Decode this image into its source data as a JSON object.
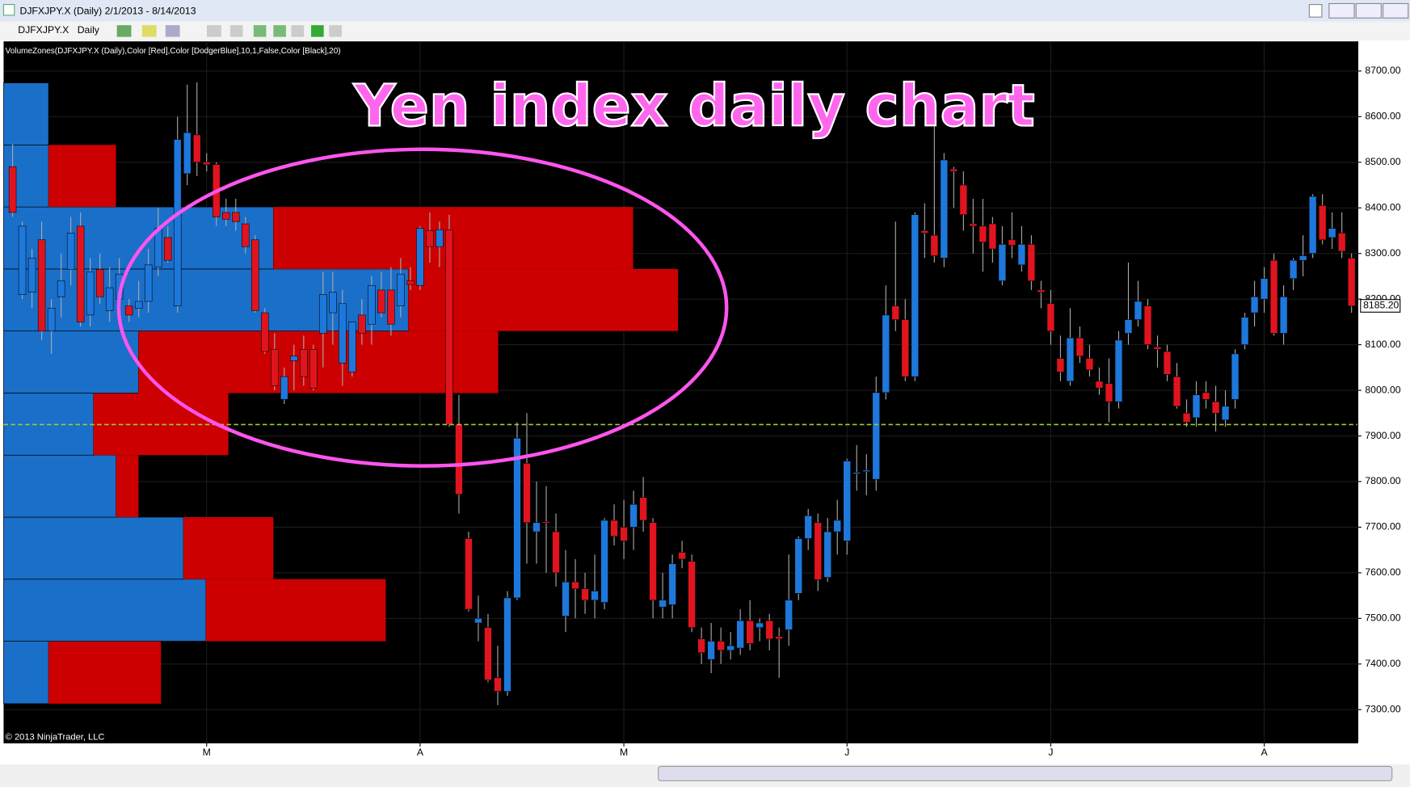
{
  "window": {
    "title": "DJFXJPY.X (Daily)  2/1/2013 - 8/14/2013",
    "instrument": "DJFXJPY.X",
    "interval": "Daily"
  },
  "chart_data": {
    "type": "candlestick",
    "title": "Yen index daily chart",
    "indicator_label": "VolumeZones(DJFXJPY.X (Daily),Color [Red],Color [DodgerBlue],10,1,False,Color [Black],20)",
    "copyright": "© 2013 NinjaTrader, LLC",
    "categories": [
      null,
      null,
      null,
      null,
      null,
      null,
      null,
      null,
      null,
      null,
      null,
      null,
      null,
      null,
      null,
      null,
      null,
      null,
      null,
      null,
      "M",
      null,
      null,
      null,
      null,
      null,
      null,
      null,
      null,
      null,
      null,
      null,
      null,
      null,
      null,
      null,
      null,
      null,
      null,
      null,
      null,
      null,
      "A",
      null,
      null,
      null,
      null,
      null,
      null,
      null,
      null,
      null,
      null,
      null,
      null,
      null,
      null,
      null,
      null,
      null,
      null,
      null,
      null,
      "M",
      null,
      null,
      null,
      null,
      null,
      null,
      null,
      null,
      null,
      null,
      null,
      null,
      null,
      null,
      null,
      null,
      null,
      null,
      null,
      null,
      null,
      null,
      "J",
      null,
      null,
      null,
      null,
      null,
      null,
      null,
      null,
      null,
      null,
      null,
      null,
      null,
      null,
      null,
      null,
      null,
      null,
      null,
      null,
      "J",
      null,
      null,
      null,
      null,
      null,
      null,
      null,
      null,
      null,
      null,
      null,
      null,
      null,
      null,
      null,
      null,
      null,
      null,
      null,
      null,
      null,
      "A",
      null,
      null,
      null,
      null,
      null,
      null,
      null,
      null,
      null
    ],
    "ohlc": [
      [
        8490,
        8540,
        8380,
        8390
      ],
      [
        8210,
        8370,
        8200,
        8360
      ],
      [
        8215,
        8310,
        8180,
        8290
      ],
      [
        8330,
        8370,
        8110,
        8130
      ],
      [
        8130,
        8200,
        8080,
        8180
      ],
      [
        8205,
        8300,
        8160,
        8240
      ],
      [
        8265,
        8380,
        8230,
        8345
      ],
      [
        8360,
        8390,
        8140,
        8150
      ],
      [
        8165,
        8290,
        8140,
        8260
      ],
      [
        8265,
        8300,
        8190,
        8205
      ],
      [
        8175,
        8270,
        8150,
        8225
      ],
      [
        8200,
        8290,
        8170,
        8255
      ],
      [
        8185,
        8200,
        8150,
        8165
      ],
      [
        8180,
        8240,
        8160,
        8195
      ],
      [
        8195,
        8310,
        8170,
        8275
      ],
      [
        8270,
        8400,
        8250,
        8355
      ],
      [
        8335,
        8360,
        8280,
        8285
      ],
      [
        8185,
        8600,
        8170,
        8550
      ],
      [
        8475,
        8670,
        8450,
        8565
      ],
      [
        8560,
        8675,
        8470,
        8500
      ],
      [
        8500,
        8520,
        8480,
        8495
      ],
      [
        8495,
        8500,
        8360,
        8380
      ],
      [
        8390,
        8420,
        8360,
        8375
      ],
      [
        8390,
        8420,
        8350,
        8370
      ],
      [
        8365,
        8380,
        8300,
        8315
      ],
      [
        8330,
        8340,
        8170,
        8175
      ],
      [
        8170,
        8180,
        8080,
        8085
      ],
      [
        8090,
        8125,
        8000,
        8010
      ],
      [
        7980,
        8050,
        7970,
        8030
      ],
      [
        8065,
        8100,
        8000,
        8075
      ],
      [
        8090,
        8120,
        8010,
        8030
      ],
      [
        8090,
        8100,
        8000,
        8005
      ],
      [
        8125,
        8260,
        8050,
        8210
      ],
      [
        8170,
        8260,
        8100,
        8215
      ],
      [
        8060,
        8220,
        8010,
        8190
      ],
      [
        8040,
        8150,
        8030,
        8150
      ],
      [
        8165,
        8200,
        8100,
        8125
      ],
      [
        8145,
        8250,
        8100,
        8230
      ],
      [
        8220,
        8260,
        8160,
        8170
      ],
      [
        8220,
        8270,
        8120,
        8145
      ],
      [
        8185,
        8290,
        8160,
        8255
      ],
      [
        8240,
        8270,
        8220,
        8232
      ],
      [
        8230,
        8360,
        8220,
        8355
      ],
      [
        8350,
        8390,
        8280,
        8315
      ],
      [
        8315,
        8370,
        8270,
        8352
      ],
      [
        8352,
        8385,
        7920,
        7925
      ],
      [
        7925,
        7990,
        7730,
        7772
      ],
      [
        7675,
        7690,
        7515,
        7520
      ],
      [
        7490,
        7550,
        7450,
        7500
      ],
      [
        7480,
        7510,
        7360,
        7365
      ],
      [
        7370,
        7440,
        7310,
        7340
      ],
      [
        7340,
        7560,
        7330,
        7545
      ],
      [
        7545,
        7930,
        7540,
        7895
      ],
      [
        7840,
        7950,
        7620,
        7710
      ],
      [
        7690,
        7800,
        7620,
        7710
      ],
      [
        7712,
        7790,
        7600,
        7710
      ],
      [
        7690,
        7730,
        7570,
        7600
      ],
      [
        7505,
        7650,
        7470,
        7580
      ],
      [
        7580,
        7630,
        7500,
        7565
      ],
      [
        7565,
        7600,
        7510,
        7540
      ],
      [
        7540,
        7640,
        7500,
        7560
      ],
      [
        7535,
        7720,
        7520,
        7715
      ],
      [
        7715,
        7750,
        7660,
        7680
      ],
      [
        7700,
        7760,
        7630,
        7670
      ],
      [
        7700,
        7780,
        7650,
        7750
      ],
      [
        7765,
        7810,
        7690,
        7715
      ],
      [
        7710,
        7720,
        7500,
        7540
      ],
      [
        7525,
        7600,
        7500,
        7540
      ],
      [
        7530,
        7640,
        7500,
        7620
      ],
      [
        7645,
        7670,
        7610,
        7630
      ],
      [
        7625,
        7640,
        7470,
        7480
      ],
      [
        7455,
        7480,
        7400,
        7425
      ],
      [
        7410,
        7490,
        7380,
        7450
      ],
      [
        7450,
        7480,
        7400,
        7430
      ],
      [
        7430,
        7470,
        7410,
        7440
      ],
      [
        7435,
        7520,
        7420,
        7495
      ],
      [
        7495,
        7540,
        7430,
        7445
      ],
      [
        7480,
        7500,
        7450,
        7490
      ],
      [
        7495,
        7510,
        7430,
        7455
      ],
      [
        7460,
        7480,
        7370,
        7455
      ],
      [
        7475,
        7640,
        7440,
        7540
      ],
      [
        7555,
        7680,
        7540,
        7675
      ],
      [
        7675,
        7740,
        7650,
        7725
      ],
      [
        7710,
        7730,
        7560,
        7585
      ],
      [
        7590,
        7720,
        7580,
        7690
      ],
      [
        7690,
        7760,
        7640,
        7715
      ],
      [
        7670,
        7850,
        7640,
        7845
      ],
      [
        7820,
        7880,
        7780,
        7820
      ],
      [
        7822,
        7860,
        7770,
        7825
      ],
      [
        7805,
        8030,
        7780,
        7995
      ],
      [
        7995,
        8230,
        7980,
        8165
      ],
      [
        8185,
        8370,
        8130,
        8155
      ],
      [
        8155,
        8200,
        8020,
        8030
      ],
      [
        8030,
        8390,
        8020,
        8385
      ],
      [
        8350,
        8410,
        8290,
        8345
      ],
      [
        8340,
        8580,
        8280,
        8295
      ],
      [
        8290,
        8520,
        8270,
        8505
      ],
      [
        8485,
        8490,
        8400,
        8480
      ],
      [
        8450,
        8480,
        8350,
        8385
      ],
      [
        8365,
        8420,
        8300,
        8360
      ],
      [
        8360,
        8420,
        8260,
        8325
      ],
      [
        8365,
        8380,
        8280,
        8310
      ],
      [
        8240,
        8360,
        8230,
        8320
      ],
      [
        8330,
        8390,
        8290,
        8318
      ],
      [
        8275,
        8360,
        8260,
        8320
      ],
      [
        8320,
        8340,
        8220,
        8240
      ],
      [
        8220,
        8240,
        8180,
        8215
      ],
      [
        8190,
        8220,
        8100,
        8130
      ],
      [
        8070,
        8120,
        8020,
        8040
      ],
      [
        8020,
        8180,
        8010,
        8115
      ],
      [
        8115,
        8140,
        8060,
        8075
      ],
      [
        8070,
        8100,
        8030,
        8045
      ],
      [
        8020,
        8050,
        7990,
        8005
      ],
      [
        8015,
        8070,
        7930,
        7975
      ],
      [
        7975,
        8130,
        7960,
        8110
      ],
      [
        8125,
        8280,
        8100,
        8155
      ],
      [
        8155,
        8240,
        8140,
        8195
      ],
      [
        8185,
        8200,
        8090,
        8100
      ],
      [
        8095,
        8120,
        8050,
        8090
      ],
      [
        8085,
        8100,
        8020,
        8035
      ],
      [
        8030,
        8060,
        7960,
        7965
      ],
      [
        7950,
        7980,
        7920,
        7930
      ],
      [
        7940,
        8020,
        7920,
        7990
      ],
      [
        7995,
        8020,
        7960,
        7980
      ],
      [
        7975,
        8010,
        7910,
        7950
      ],
      [
        7935,
        8000,
        7920,
        7965
      ],
      [
        7980,
        8090,
        7960,
        8080
      ],
      [
        8100,
        8170,
        8090,
        8160
      ],
      [
        8170,
        8240,
        8140,
        8205
      ],
      [
        8200,
        8270,
        8170,
        8245
      ],
      [
        8285,
        8300,
        8120,
        8125
      ],
      [
        8125,
        8230,
        8100,
        8205
      ],
      [
        8245,
        8290,
        8220,
        8285
      ],
      [
        8285,
        8340,
        8250,
        8295
      ],
      [
        8300,
        8430,
        8290,
        8425
      ],
      [
        8405,
        8430,
        8320,
        8330
      ],
      [
        8335,
        8390,
        8310,
        8355
      ],
      [
        8345,
        8390,
        8290,
        8305
      ],
      [
        8290,
        8300,
        8170,
        8185
      ]
    ],
    "up_color": "#1e78dc",
    "down_color": "#e0141e",
    "volume_zones": {
      "price_bins": [
        7313,
        7450,
        7586,
        7722,
        7858,
        7994,
        8130,
        8266,
        8402,
        8538,
        8674
      ],
      "up_volume": [
        2,
        9,
        8,
        5,
        4,
        6,
        18,
        12,
        2,
        2
      ],
      "down_volume": [
        5,
        8,
        4,
        1,
        6,
        16,
        12,
        16,
        3,
        0
      ],
      "up_color": "#1a6fc9",
      "down_color": "#cc0000"
    },
    "reference_line": 7925,
    "reference_color": "#9acd32",
    "last_price": {
      "value": 8185.2,
      "label": "8185.20"
    },
    "ylim": [
      7227,
      8765
    ],
    "yticks": [
      {
        "value": 7300,
        "label": "7300.00"
      },
      {
        "value": 7400,
        "label": "7400.00"
      },
      {
        "value": 7500,
        "label": "7500.00"
      },
      {
        "value": 7600,
        "label": "7600.00"
      },
      {
        "value": 7700,
        "label": "7700.00"
      },
      {
        "value": 7800,
        "label": "7800.00"
      },
      {
        "value": 7900,
        "label": "7900.00"
      },
      {
        "value": 8000,
        "label": "8000.00"
      },
      {
        "value": 8100,
        "label": "8100.00"
      },
      {
        "value": 8200,
        "label": "8200.00"
      },
      {
        "value": 8300,
        "label": "8300.00"
      },
      {
        "value": 8400,
        "label": "8400.00"
      },
      {
        "value": 8500,
        "label": "8500.00"
      },
      {
        "value": 8600,
        "label": "8600.00"
      },
      {
        "value": 8700,
        "label": "8700.00"
      }
    ],
    "grid": true
  }
}
